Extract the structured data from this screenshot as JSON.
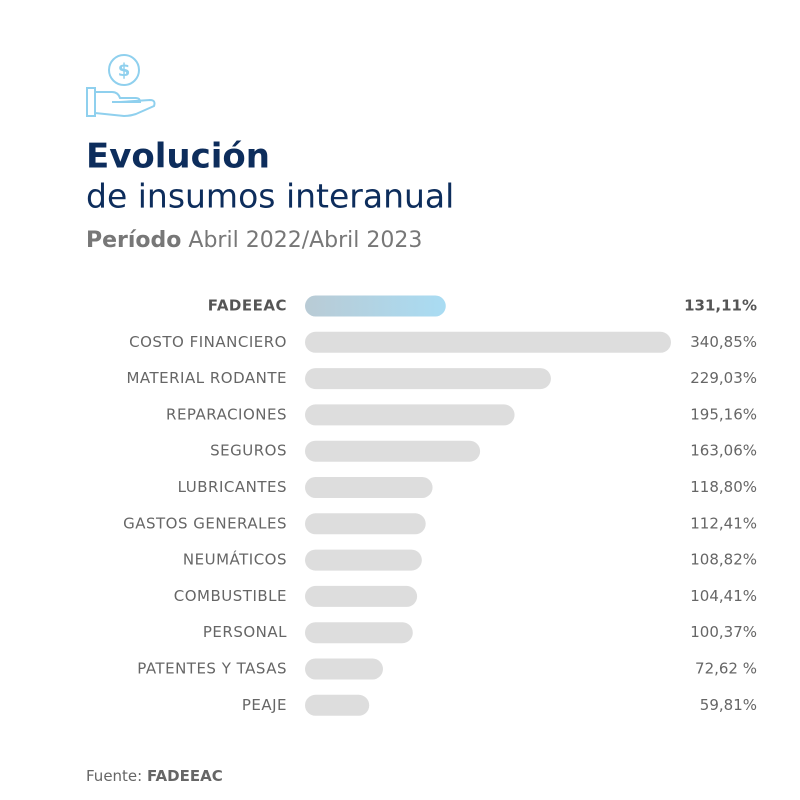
{
  "chart_data": {
    "type": "bar",
    "orientation": "horizontal",
    "title_lines": [
      "Evolución",
      "de insumos interanual"
    ],
    "subtitle_label": "Período",
    "subtitle": "Abril 2022/Abril 2023",
    "categories": [
      "FADEEAC",
      "COSTO FINANCIERO",
      "MATERIAL RODANTE",
      "REPARACIONES",
      "SEGUROS",
      "LUBRICANTES",
      "GASTOS GENERALES",
      "NEUMÁTICOS",
      "COMBUSTIBLE",
      "PERSONAL",
      "PATENTES Y TASAS",
      "PEAJE"
    ],
    "values": [
      131.11,
      340.85,
      229.03,
      195.16,
      163.06,
      118.8,
      112.41,
      108.82,
      104.41,
      100.37,
      72.62,
      59.81
    ],
    "value_labels": [
      "131,11%",
      "340,85%",
      "229,03%",
      "195,16%",
      "163,06%",
      "118,80%",
      "112,41%",
      "108,82%",
      "104,41%",
      "100,37%",
      "72,62 %",
      "59,81%"
    ],
    "colors": [
      "#a9dcf3",
      "#dddddd",
      "#dddddd",
      "#dddddd",
      "#dddddd",
      "#dddddd",
      "#dddddd",
      "#dddddd",
      "#dddddd",
      "#dddddd",
      "#dddddd",
      "#dddddd"
    ],
    "source_label": "Fuente:",
    "source": "FADEEAC"
  }
}
